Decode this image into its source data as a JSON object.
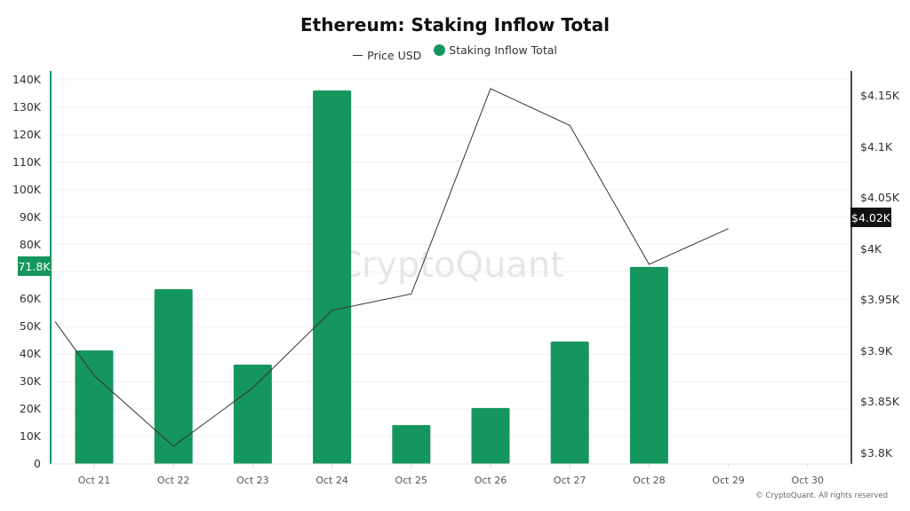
{
  "title": "Ethereum: Staking Inflow Total",
  "legend": {
    "price_label": "Price USD",
    "inflow_label": "Staking Inflow Total"
  },
  "colors": {
    "bar": "#16965f",
    "price_line": "#333333",
    "highlight_left_bg": "#16965f",
    "highlight_right_bg": "#111111",
    "left_axis_line": "#16965f"
  },
  "left_axis_ticks": [
    "0",
    "10K",
    "20K",
    "30K",
    "40K",
    "50K",
    "60K",
    "70K",
    "80K",
    "90K",
    "100K",
    "110K",
    "120K",
    "130K",
    "140K"
  ],
  "right_axis_ticks": [
    "$3.8K",
    "$3.85K",
    "$3.9K",
    "$3.95K",
    "$4K",
    "$4.05K",
    "$4.1K",
    "$4.15K"
  ],
  "highlight": {
    "left_value": "71.8K",
    "right_value": "$4.02K"
  },
  "x_labels": [
    "Oct 21",
    "Oct 22",
    "Oct 23",
    "Oct 24",
    "Oct 25",
    "Oct 26",
    "Oct 27",
    "Oct 28",
    "Oct 29",
    "Oct 30"
  ],
  "watermark": "CryptoQuant",
  "copyright": "© CryptoQuant. All rights reserved",
  "chart_data": {
    "type": "bar",
    "title": "Ethereum: Staking Inflow Total",
    "categories": [
      "Oct 21",
      "Oct 22",
      "Oct 23",
      "Oct 24",
      "Oct 25",
      "Oct 26",
      "Oct 27",
      "Oct 28",
      "Oct 29",
      "Oct 30"
    ],
    "series": [
      {
        "name": "Staking Inflow Total",
        "type": "bar",
        "axis": "left",
        "values": [
          41400,
          63700,
          36200,
          136100,
          14200,
          20400,
          44600,
          71800,
          null,
          null
        ]
      },
      {
        "name": "Price USD",
        "type": "line",
        "axis": "right",
        "start_value": 3929,
        "values": [
          3876,
          3807,
          3864,
          3940,
          3956,
          4157,
          4121,
          3985,
          4020,
          null
        ]
      }
    ],
    "xlabel": "",
    "ylabel_left": "Staking Inflow Total",
    "ylabel_right": "Price USD",
    "ylim_left": [
      0,
      140000
    ],
    "ylim_right": [
      3800,
      4170
    ],
    "grid": true,
    "legend_position": "top"
  }
}
